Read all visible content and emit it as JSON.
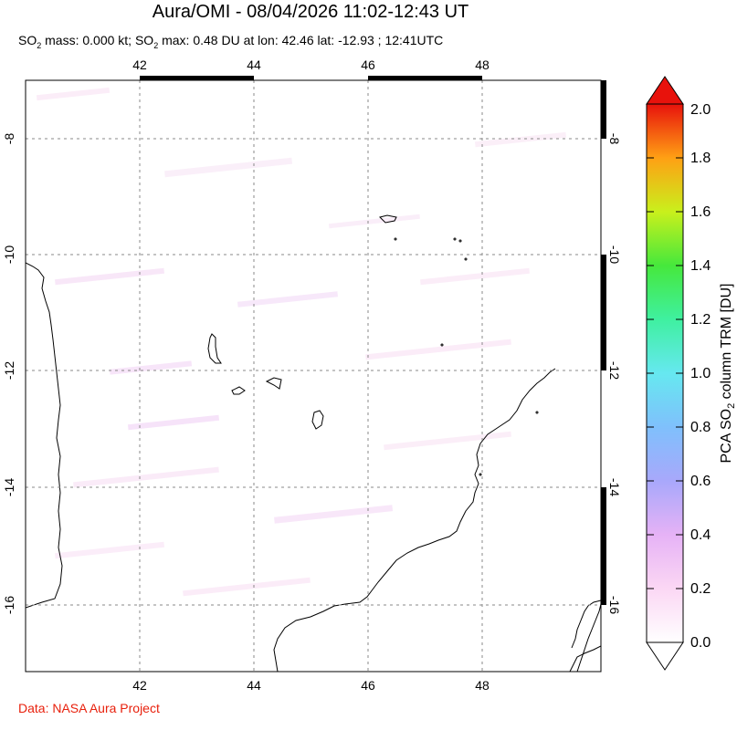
{
  "title": "Aura/OMI - 08/04/2026 11:02-12:43 UT",
  "subtitle": {
    "p1": "SO",
    "sub1": "2",
    "p2": " mass: 0.000 kt; SO",
    "sub2": "2",
    "p3": " max: 0.48 DU at lon: 42.46 lat: -12.93 ; 12:41UTC"
  },
  "credit": "Data: NASA Aura Project",
  "map": {
    "lon_range": [
      40,
      50
    ],
    "lat_range": [
      -17,
      -7
    ],
    "lon_ticks": [
      "42",
      "44",
      "46",
      "48"
    ],
    "lat_ticks": [
      "-8",
      "-10",
      "-12",
      "-14",
      "-16"
    ],
    "grid": true
  },
  "colorbar": {
    "title_p1": "PCA SO",
    "title_sub": "2",
    "title_p2": " column TRM [DU]",
    "labels": [
      "0.0",
      "0.2",
      "0.4",
      "0.6",
      "0.8",
      "1.0",
      "1.2",
      "1.4",
      "1.6",
      "1.8",
      "2.0"
    ],
    "stops": [
      "#ffffff",
      "#fbd7f4",
      "#e6b2f6",
      "#a8a8fb",
      "#66d8fc",
      "#3ff0b0",
      "#46e83c",
      "#c9f01c",
      "#ffc014",
      "#ff6812",
      "#e8120c"
    ]
  }
}
